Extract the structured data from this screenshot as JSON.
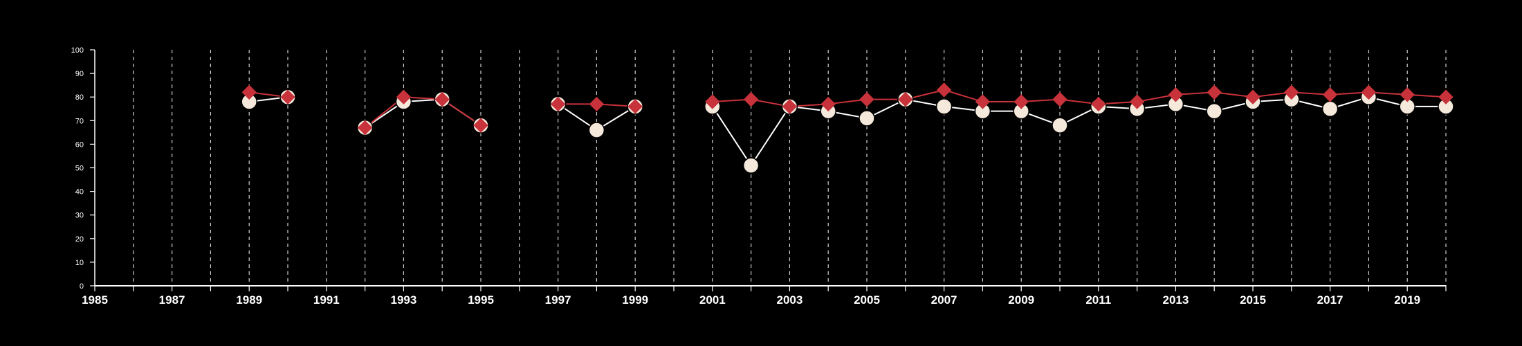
{
  "chart_data": {
    "type": "line",
    "x_range": [
      1985,
      2020
    ],
    "ylim": [
      0,
      100
    ],
    "y_ticks": [
      0,
      10,
      20,
      30,
      40,
      50,
      60,
      70,
      80,
      90,
      100
    ],
    "x_tick_labels": [
      1985,
      1987,
      1989,
      1991,
      1993,
      1995,
      1997,
      1999,
      2001,
      2003,
      2005,
      2007,
      2009,
      2011,
      2013,
      2015,
      2017,
      2019
    ],
    "grid": "vertical dashed at every year",
    "colors": {
      "background": "#000000",
      "axis": "#ffffff",
      "grid": "#cfcfcf",
      "series_circle_fill": "#f5e9dc",
      "series_circle_line": "#ffffff",
      "series_diamond_fill": "#c8323a",
      "series_diamond_line": "#c8323a"
    },
    "series": [
      {
        "marker": "circle",
        "points": [
          [
            1989,
            78
          ],
          [
            1990,
            80
          ],
          [
            1992,
            67
          ],
          [
            1993,
            78
          ],
          [
            1994,
            79
          ],
          [
            1995,
            68
          ],
          [
            1997,
            77
          ],
          [
            1998,
            66
          ],
          [
            1999,
            76
          ],
          [
            2001,
            76
          ],
          [
            2002,
            51
          ],
          [
            2003,
            76
          ],
          [
            2004,
            74
          ],
          [
            2005,
            71
          ],
          [
            2006,
            79
          ],
          [
            2007,
            76
          ],
          [
            2008,
            74
          ],
          [
            2009,
            74
          ],
          [
            2010,
            68
          ],
          [
            2011,
            76
          ],
          [
            2012,
            75
          ],
          [
            2013,
            77
          ],
          [
            2014,
            74
          ],
          [
            2015,
            78
          ],
          [
            2016,
            79
          ],
          [
            2017,
            75
          ],
          [
            2018,
            80
          ],
          [
            2019,
            76
          ],
          [
            2020,
            76
          ]
        ]
      },
      {
        "marker": "diamond",
        "points": [
          [
            1989,
            82
          ],
          [
            1990,
            80
          ],
          [
            1992,
            67
          ],
          [
            1993,
            80
          ],
          [
            1994,
            79
          ],
          [
            1995,
            68
          ],
          [
            1997,
            77
          ],
          [
            1998,
            77
          ],
          [
            1999,
            76
          ],
          [
            2001,
            78
          ],
          [
            2002,
            79
          ],
          [
            2003,
            76
          ],
          [
            2004,
            77
          ],
          [
            2005,
            79
          ],
          [
            2006,
            79
          ],
          [
            2007,
            83
          ],
          [
            2008,
            78
          ],
          [
            2009,
            78
          ],
          [
            2010,
            79
          ],
          [
            2011,
            77
          ],
          [
            2012,
            78
          ],
          [
            2013,
            81
          ],
          [
            2014,
            82
          ],
          [
            2015,
            80
          ],
          [
            2016,
            82
          ],
          [
            2017,
            81
          ],
          [
            2018,
            82
          ],
          [
            2019,
            81
          ],
          [
            2020,
            80
          ]
        ]
      }
    ]
  }
}
